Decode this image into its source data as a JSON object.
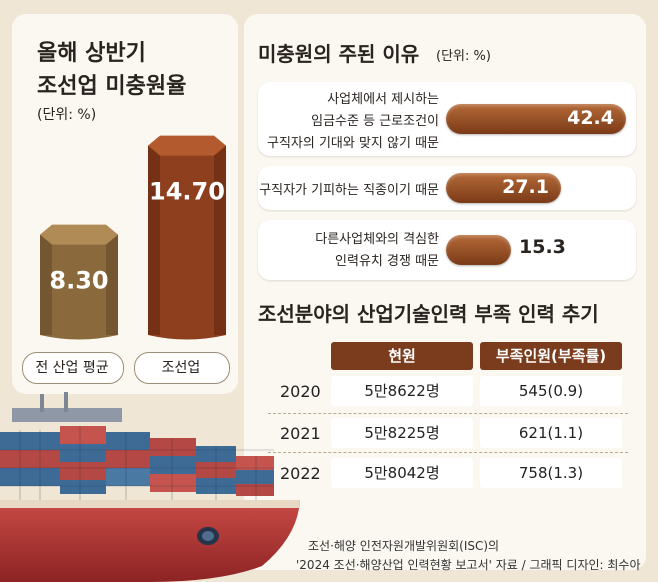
{
  "left": {
    "title_line1": "올해 상반기",
    "title_line2": "조선업 미충원율",
    "unit": "(단위: %)"
  },
  "reasons": {
    "title": "미충원의 주된 이유",
    "unit": "(단위: %)"
  },
  "table": {
    "title": "조선분야의 산업기술인력 부족 인력 추기",
    "headers": [
      "현원",
      "부족인원(부족률)"
    ],
    "rows": [
      {
        "year": "2020",
        "current": "5만8622명",
        "shortage": "545(0.9)"
      },
      {
        "year": "2021",
        "current": "5만8225명",
        "shortage": "621(1.1)"
      },
      {
        "year": "2022",
        "current": "5만8042명",
        "shortage": "758(1.3)"
      }
    ]
  },
  "source": {
    "line1": "조선·해양 인전자원개발위원회(ISC)의",
    "line2": "'2024 조선·해양산업 인력현황 보고서' 자료 / 그래픽 디자인: 최수아"
  },
  "colors": {
    "bar_gold": "#8a6a3c",
    "bar_rust": "#8d3f1e",
    "pill": "#9a4f26",
    "header": "#7a3c1c"
  },
  "chart_data": [
    {
      "type": "bar",
      "categories": [
        "전 산업 평균",
        "조선업"
      ],
      "values": [
        8.3,
        14.7
      ],
      "value_labels": [
        "8.30",
        "14.70"
      ]
    },
    {
      "type": "bar",
      "orientation": "horizontal",
      "categories": [
        [
          "사업체에서 제시하는",
          "임금수준 등 근로조건이",
          "구직자의 기대와 맞지 않기 때문"
        ],
        [
          "구직자가 기피하는 직종이기 때문"
        ],
        [
          "다른사업체와의 격심한",
          "인력유치 경쟁 때문"
        ]
      ],
      "values": [
        42.4,
        27.1,
        15.3
      ],
      "value_labels": [
        "42.4",
        "27.1",
        "15.3"
      ]
    }
  ]
}
